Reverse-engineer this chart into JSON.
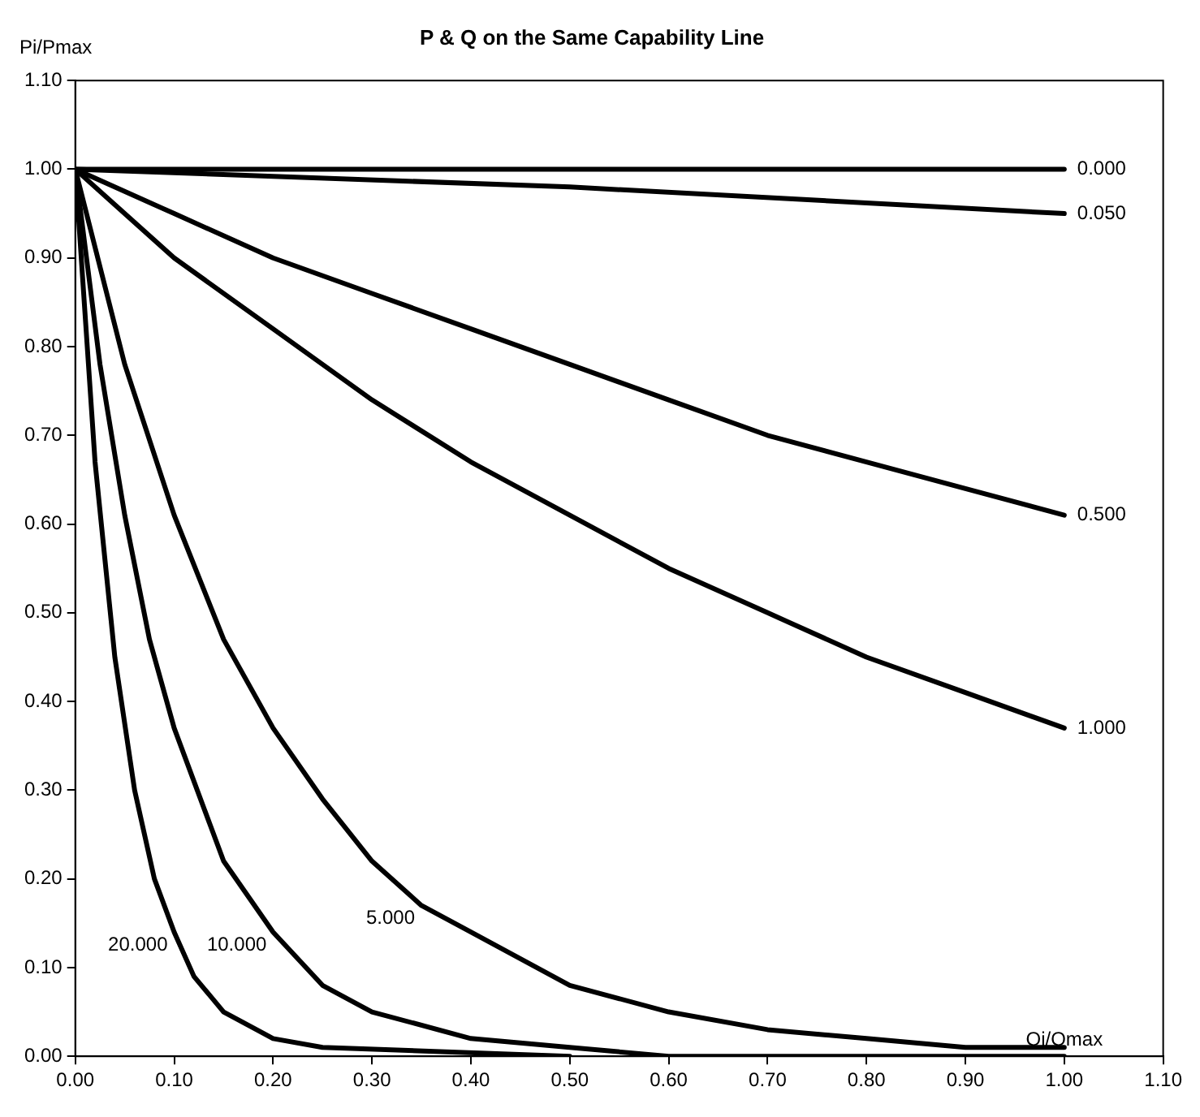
{
  "chart_data": {
    "type": "line",
    "title": "P & Q on the Same Capability Line",
    "xlabel": "Qi/Qmax",
    "ylabel": "Pi/Pmax",
    "xlim": [
      0,
      1.1
    ],
    "xticks": [
      {
        "value": 0,
        "label": "0.00"
      },
      {
        "value": 0.1,
        "label": "0.10"
      },
      {
        "value": 0.2,
        "label": "0.20"
      },
      {
        "value": 0.3,
        "label": "0.30"
      },
      {
        "value": 0.4,
        "label": "0.40"
      },
      {
        "value": 0.5,
        "label": "0.50"
      },
      {
        "value": 0.6,
        "label": "0.60"
      },
      {
        "value": 0.7,
        "label": "0.70"
      },
      {
        "value": 0.8,
        "label": "0.80"
      },
      {
        "value": 0.9,
        "label": "0.90"
      },
      {
        "value": 1,
        "label": "1.00"
      },
      {
        "value": 1.1,
        "label": "1.10"
      }
    ],
    "ylim": [
      0,
      1.1
    ],
    "yticks": [
      {
        "value": 0,
        "label": "0.00"
      },
      {
        "value": 0.1,
        "label": "0.10"
      },
      {
        "value": 0.2,
        "label": "0.20"
      },
      {
        "value": 0.3,
        "label": "0.30"
      },
      {
        "value": 0.4,
        "label": "0.40"
      },
      {
        "value": 0.5,
        "label": "0.50"
      },
      {
        "value": 0.6,
        "label": "0.60"
      },
      {
        "value": 0.7,
        "label": "0.70"
      },
      {
        "value": 0.8,
        "label": "0.80"
      },
      {
        "value": 0.9,
        "label": "0.90"
      },
      {
        "value": 1,
        "label": "1.00"
      },
      {
        "value": 1.1,
        "label": "1.10"
      }
    ],
    "grid": false,
    "legend": false,
    "marker": "none",
    "line_style": "solid",
    "series": [
      {
        "name": "0.000",
        "color": "#000000",
        "x": [
          0,
          1
        ],
        "values": [
          1,
          1
        ]
      },
      {
        "name": "0.050",
        "color": "#000000",
        "x": [
          0,
          0.5,
          1
        ],
        "values": [
          1,
          0.98,
          0.95
        ]
      },
      {
        "name": "0.500",
        "color": "#000000",
        "x": [
          0,
          0.1,
          0.2,
          0.3,
          0.4,
          0.5,
          0.6,
          0.7,
          0.8,
          0.9,
          1
        ],
        "values": [
          1,
          0.95,
          0.9,
          0.86,
          0.82,
          0.78,
          0.74,
          0.7,
          0.67,
          0.64,
          0.61
        ]
      },
      {
        "name": "1.000",
        "color": "#000000",
        "x": [
          0,
          0.1,
          0.2,
          0.3,
          0.4,
          0.5,
          0.6,
          0.7,
          0.8,
          0.9,
          1
        ],
        "values": [
          1,
          0.9,
          0.82,
          0.74,
          0.67,
          0.61,
          0.55,
          0.5,
          0.45,
          0.41,
          0.37
        ]
      },
      {
        "name": "5.000",
        "color": "#000000",
        "x": [
          0,
          0.05,
          0.1,
          0.15,
          0.2,
          0.25,
          0.3,
          0.35,
          0.4,
          0.5,
          0.6,
          0.7,
          0.8,
          0.9,
          1
        ],
        "values": [
          1,
          0.78,
          0.61,
          0.47,
          0.37,
          0.29,
          0.22,
          0.17,
          0.14,
          0.08,
          0.05,
          0.03,
          0.02,
          0.01,
          0.01
        ]
      },
      {
        "name": "10.000",
        "color": "#000000",
        "x": [
          0,
          0.025,
          0.05,
          0.075,
          0.1,
          0.15,
          0.2,
          0.25,
          0.3,
          0.4,
          0.5,
          0.6,
          0.8,
          1
        ],
        "values": [
          1,
          0.78,
          0.61,
          0.47,
          0.37,
          0.22,
          0.14,
          0.08,
          0.05,
          0.02,
          0.01,
          0,
          0,
          0
        ]
      },
      {
        "name": "20.000",
        "color": "#000000",
        "x": [
          0,
          0.02,
          0.04,
          0.06,
          0.08,
          0.1,
          0.12,
          0.15,
          0.2,
          0.25,
          0.5
        ],
        "values": [
          1,
          0.67,
          0.45,
          0.3,
          0.2,
          0.14,
          0.09,
          0.05,
          0.02,
          0.01,
          0
        ]
      }
    ]
  }
}
